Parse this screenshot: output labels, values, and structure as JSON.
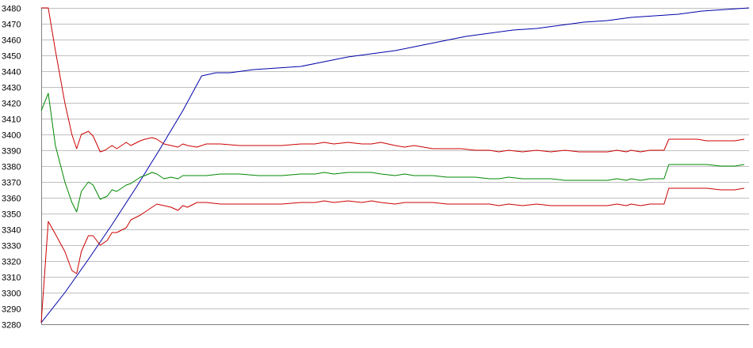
{
  "chart_data": {
    "type": "line",
    "title": "",
    "xlabel": "",
    "ylabel": "",
    "ylim": [
      3280,
      3480
    ],
    "y_ticks": [
      3280,
      3290,
      3300,
      3310,
      3320,
      3330,
      3340,
      3350,
      3360,
      3370,
      3380,
      3390,
      3400,
      3410,
      3420,
      3430,
      3440,
      3450,
      3460,
      3470,
      3480
    ],
    "y_tick_labels": [
      "3280",
      "3290",
      "3300",
      "3310",
      "3320",
      "3330",
      "3340",
      "3350",
      "3360",
      "3370",
      "3380",
      "3390",
      "3400",
      "3410",
      "3420",
      "3430",
      "3440",
      "3450",
      "3460",
      "3470",
      "3480"
    ],
    "grid": true,
    "legend": "none",
    "x_count": 111,
    "series": [
      {
        "color": "#0000aa",
        "points": [
          [
            0,
            3281
          ],
          [
            5,
            3300
          ],
          [
            10,
            3321
          ],
          [
            15,
            3343
          ],
          [
            20,
            3366
          ],
          [
            25,
            3390
          ],
          [
            30,
            3415
          ],
          [
            34,
            3437
          ],
          [
            37,
            3439
          ],
          [
            40,
            3439
          ],
          [
            45,
            3441
          ],
          [
            50,
            3442
          ],
          [
            55,
            3443
          ],
          [
            60,
            3446
          ],
          [
            65,
            3449
          ],
          [
            70,
            3451
          ],
          [
            75,
            3453
          ],
          [
            80,
            3456
          ],
          [
            85,
            3459
          ],
          [
            90,
            3462
          ],
          [
            95,
            3464
          ],
          [
            100,
            3466
          ],
          [
            105,
            3467
          ],
          [
            110,
            3469
          ],
          [
            115,
            3471
          ],
          [
            120,
            3472
          ],
          [
            125,
            3474
          ],
          [
            130,
            3475
          ],
          [
            135,
            3476
          ],
          [
            140,
            3478
          ],
          [
            145,
            3479
          ],
          [
            150,
            3480
          ]
        ]
      },
      {
        "color": "#cc0000",
        "points": [
          [
            0,
            3480
          ],
          [
            1.5,
            3480
          ],
          [
            3,
            3453
          ],
          [
            5,
            3420
          ],
          [
            6.5,
            3400
          ],
          [
            7.5,
            3391
          ],
          [
            8.5,
            3400
          ],
          [
            10,
            3402
          ],
          [
            11,
            3399
          ],
          [
            12.5,
            3389
          ],
          [
            13.5,
            3390
          ],
          [
            15,
            3393
          ],
          [
            16,
            3391
          ],
          [
            18,
            3395
          ],
          [
            19,
            3393
          ],
          [
            21,
            3396
          ],
          [
            22,
            3397
          ],
          [
            23.5,
            3398
          ],
          [
            24.5,
            3397
          ],
          [
            26,
            3394
          ],
          [
            27.5,
            3393
          ],
          [
            29,
            3392
          ],
          [
            30,
            3394
          ],
          [
            31,
            3393
          ],
          [
            33,
            3392
          ],
          [
            35,
            3394
          ],
          [
            38,
            3394
          ],
          [
            42,
            3393
          ],
          [
            46,
            3393
          ],
          [
            51,
            3393
          ],
          [
            55,
            3394
          ],
          [
            58,
            3394
          ],
          [
            60,
            3395
          ],
          [
            62,
            3394
          ],
          [
            65,
            3395
          ],
          [
            68,
            3394
          ],
          [
            70,
            3394
          ],
          [
            72,
            3395
          ],
          [
            75,
            3393
          ],
          [
            77,
            3392
          ],
          [
            79,
            3393
          ],
          [
            81,
            3392
          ],
          [
            83,
            3391
          ],
          [
            86,
            3391
          ],
          [
            89,
            3391
          ],
          [
            92,
            3390
          ],
          [
            95,
            3390
          ],
          [
            97,
            3389
          ],
          [
            99,
            3390
          ],
          [
            102,
            3389
          ],
          [
            105,
            3390
          ],
          [
            108,
            3389
          ],
          [
            111,
            3390
          ],
          [
            114,
            3389
          ],
          [
            118,
            3389
          ],
          [
            120,
            3389
          ],
          [
            122,
            3390
          ],
          [
            124,
            3389
          ],
          [
            125,
            3390
          ],
          [
            127,
            3389
          ],
          [
            129,
            3390
          ],
          [
            131,
            3390
          ],
          [
            132,
            3390
          ],
          [
            133,
            3397
          ],
          [
            139,
            3397
          ],
          [
            141,
            3396
          ],
          [
            144,
            3396
          ],
          [
            146,
            3396
          ],
          [
            147,
            3396
          ],
          [
            149,
            3397
          ]
        ]
      },
      {
        "color": "#008800",
        "points": [
          [
            0,
            3415
          ],
          [
            1.5,
            3426
          ],
          [
            3,
            3393
          ],
          [
            5,
            3370
          ],
          [
            6.5,
            3357
          ],
          [
            7.5,
            3351
          ],
          [
            8.5,
            3364
          ],
          [
            10,
            3370
          ],
          [
            11,
            3368
          ],
          [
            12.5,
            3359
          ],
          [
            14,
            3361
          ],
          [
            15,
            3365
          ],
          [
            16,
            3364
          ],
          [
            18,
            3368
          ],
          [
            19,
            3369
          ],
          [
            21,
            3373
          ],
          [
            22,
            3374
          ],
          [
            23.5,
            3376
          ],
          [
            24.5,
            3375
          ],
          [
            26,
            3372
          ],
          [
            27.5,
            3373
          ],
          [
            29,
            3372
          ],
          [
            30,
            3374
          ],
          [
            31,
            3374
          ],
          [
            33,
            3374
          ],
          [
            35,
            3374
          ],
          [
            38,
            3375
          ],
          [
            42,
            3375
          ],
          [
            46,
            3374
          ],
          [
            51,
            3374
          ],
          [
            55,
            3375
          ],
          [
            58,
            3375
          ],
          [
            60,
            3376
          ],
          [
            62,
            3375
          ],
          [
            65,
            3376
          ],
          [
            68,
            3376
          ],
          [
            70,
            3376
          ],
          [
            72,
            3375
          ],
          [
            75,
            3374
          ],
          [
            77,
            3375
          ],
          [
            79,
            3374
          ],
          [
            81,
            3374
          ],
          [
            83,
            3374
          ],
          [
            86,
            3373
          ],
          [
            89,
            3373
          ],
          [
            92,
            3373
          ],
          [
            95,
            3372
          ],
          [
            97,
            3372
          ],
          [
            99,
            3373
          ],
          [
            102,
            3372
          ],
          [
            105,
            3372
          ],
          [
            108,
            3372
          ],
          [
            111,
            3371
          ],
          [
            114,
            3371
          ],
          [
            118,
            3371
          ],
          [
            120,
            3371
          ],
          [
            122,
            3372
          ],
          [
            124,
            3371
          ],
          [
            125,
            3372
          ],
          [
            127,
            3371
          ],
          [
            129,
            3372
          ],
          [
            131,
            3372
          ],
          [
            132,
            3372
          ],
          [
            133,
            3381
          ],
          [
            139,
            3381
          ],
          [
            141,
            3381
          ],
          [
            144,
            3380
          ],
          [
            146,
            3380
          ],
          [
            147,
            3380
          ],
          [
            149,
            3381
          ]
        ]
      },
      {
        "color": "#cc0000",
        "points": [
          [
            0,
            3281
          ],
          [
            1.5,
            3345
          ],
          [
            3,
            3337
          ],
          [
            5,
            3326
          ],
          [
            6.5,
            3314
          ],
          [
            7.5,
            3312
          ],
          [
            8.5,
            3326
          ],
          [
            10,
            3336
          ],
          [
            11,
            3336
          ],
          [
            12.5,
            3330
          ],
          [
            14,
            3333
          ],
          [
            15,
            3338
          ],
          [
            16,
            3338
          ],
          [
            18,
            3341
          ],
          [
            19,
            3346
          ],
          [
            21,
            3349
          ],
          [
            22,
            3351
          ],
          [
            23.5,
            3354
          ],
          [
            24.5,
            3356
          ],
          [
            26,
            3355
          ],
          [
            27.5,
            3354
          ],
          [
            29,
            3352
          ],
          [
            30,
            3355
          ],
          [
            31,
            3354
          ],
          [
            33,
            3357
          ],
          [
            35,
            3357
          ],
          [
            38,
            3356
          ],
          [
            42,
            3356
          ],
          [
            46,
            3356
          ],
          [
            51,
            3356
          ],
          [
            55,
            3357
          ],
          [
            58,
            3357
          ],
          [
            60,
            3358
          ],
          [
            62,
            3357
          ],
          [
            65,
            3358
          ],
          [
            68,
            3357
          ],
          [
            70,
            3358
          ],
          [
            72,
            3357
          ],
          [
            75,
            3356
          ],
          [
            77,
            3357
          ],
          [
            79,
            3357
          ],
          [
            81,
            3357
          ],
          [
            83,
            3357
          ],
          [
            86,
            3356
          ],
          [
            89,
            3356
          ],
          [
            92,
            3356
          ],
          [
            95,
            3356
          ],
          [
            97,
            3355
          ],
          [
            99,
            3356
          ],
          [
            102,
            3355
          ],
          [
            105,
            3356
          ],
          [
            108,
            3355
          ],
          [
            111,
            3355
          ],
          [
            114,
            3355
          ],
          [
            118,
            3355
          ],
          [
            120,
            3355
          ],
          [
            122,
            3356
          ],
          [
            124,
            3355
          ],
          [
            125,
            3356
          ],
          [
            127,
            3355
          ],
          [
            129,
            3356
          ],
          [
            131,
            3356
          ],
          [
            132,
            3356
          ],
          [
            133,
            3366
          ],
          [
            139,
            3366
          ],
          [
            141,
            3366
          ],
          [
            144,
            3365
          ],
          [
            146,
            3365
          ],
          [
            147,
            3365
          ],
          [
            149,
            3366
          ]
        ]
      }
    ]
  }
}
